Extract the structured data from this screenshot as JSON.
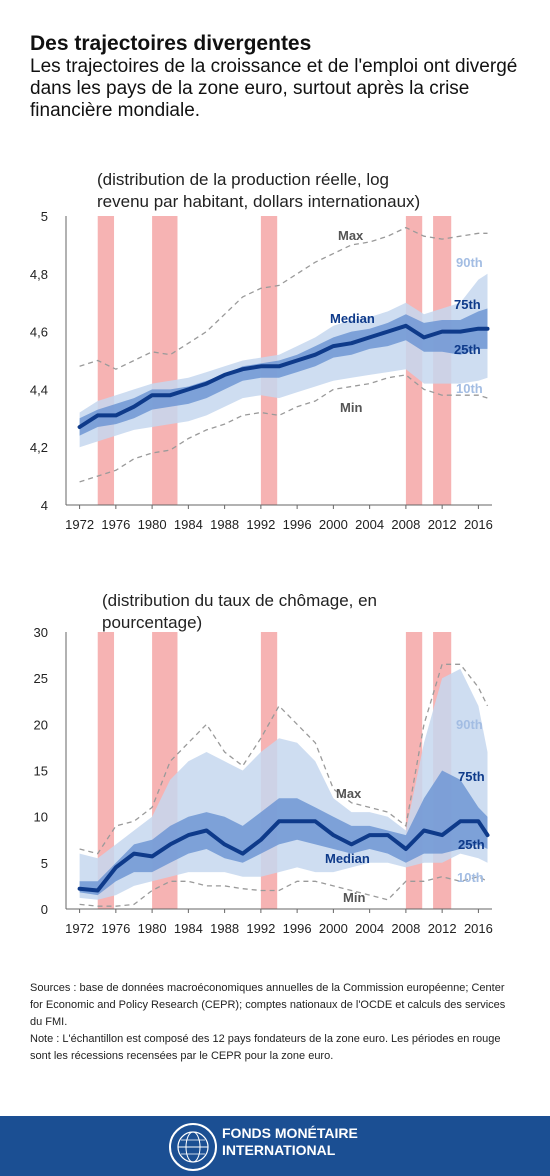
{
  "header": {
    "title": "Des trajectoires divergentes",
    "subtitle": "Les trajectoires de la croissance et de l'emploi ont divergé dans les pays de la zone euro, surtout après la crise financière mondiale."
  },
  "colors": {
    "band_outer": "#c5d7ef",
    "band_inner": "#6f97d4",
    "median": "#0e3a8a",
    "recession": "#f6b3b3",
    "minmax": "#9a9a9a",
    "footer": "#1b4f93"
  },
  "chart_data": [
    {
      "type": "area",
      "title_lines": [
        "(distribution de la production réelle, log",
        "revenu par habitant, dollars internationaux)"
      ],
      "x_ticks": [
        "1972",
        "1976",
        "1980",
        "1984",
        "1988",
        "1992",
        "1996",
        "2000",
        "2004",
        "2008",
        "2012",
        "2016"
      ],
      "y_ticks": [
        "4",
        "4,2",
        "4,4",
        "4,6",
        "4,8",
        "5"
      ],
      "xlim": [
        1970.5,
        2017.5
      ],
      "ylim": [
        4,
        5
      ],
      "recessions": [
        [
          1974,
          1975.8
        ],
        [
          1980,
          1982.8
        ],
        [
          1992,
          1993.8
        ],
        [
          2008,
          2009.8
        ],
        [
          2011,
          2013
        ]
      ],
      "labels": {
        "max": "Max",
        "p90": "90th",
        "median": "Median",
        "p75": "75th",
        "p25": "25th",
        "p10": "10th",
        "min": "Min"
      },
      "x": [
        1972,
        1974,
        1976,
        1978,
        1980,
        1982,
        1984,
        1986,
        1988,
        1990,
        1992,
        1994,
        1996,
        1998,
        2000,
        2002,
        2004,
        2006,
        2008,
        2010,
        2012,
        2014,
        2016,
        2017
      ],
      "series": [
        {
          "name": "Max",
          "values": [
            4.48,
            4.5,
            4.47,
            4.5,
            4.53,
            4.52,
            4.56,
            4.6,
            4.66,
            4.72,
            4.75,
            4.76,
            4.8,
            4.84,
            4.87,
            4.9,
            4.91,
            4.93,
            4.96,
            4.93,
            4.92,
            4.93,
            4.94,
            4.94
          ]
        },
        {
          "name": "90th",
          "values": [
            4.32,
            4.36,
            4.38,
            4.4,
            4.42,
            4.43,
            4.44,
            4.46,
            4.48,
            4.5,
            4.51,
            4.52,
            4.55,
            4.58,
            4.62,
            4.64,
            4.65,
            4.67,
            4.7,
            4.66,
            4.68,
            4.7,
            4.78,
            4.8
          ]
        },
        {
          "name": "75th",
          "values": [
            4.3,
            4.33,
            4.35,
            4.37,
            4.4,
            4.4,
            4.41,
            4.43,
            4.45,
            4.48,
            4.49,
            4.5,
            4.52,
            4.55,
            4.58,
            4.6,
            4.61,
            4.63,
            4.66,
            4.63,
            4.64,
            4.64,
            4.67,
            4.68
          ]
        },
        {
          "name": "Median",
          "values": [
            4.27,
            4.31,
            4.31,
            4.34,
            4.38,
            4.38,
            4.4,
            4.42,
            4.45,
            4.47,
            4.48,
            4.48,
            4.5,
            4.52,
            4.55,
            4.56,
            4.58,
            4.6,
            4.62,
            4.58,
            4.6,
            4.6,
            4.61,
            4.61
          ]
        },
        {
          "name": "25th",
          "values": [
            4.24,
            4.27,
            4.28,
            4.3,
            4.33,
            4.34,
            4.35,
            4.37,
            4.4,
            4.43,
            4.44,
            4.44,
            4.46,
            4.48,
            4.51,
            4.52,
            4.54,
            4.55,
            4.57,
            4.53,
            4.53,
            4.52,
            4.54,
            4.54
          ]
        },
        {
          "name": "10th",
          "values": [
            4.2,
            4.22,
            4.24,
            4.26,
            4.27,
            4.28,
            4.29,
            4.31,
            4.34,
            4.37,
            4.38,
            4.37,
            4.39,
            4.41,
            4.43,
            4.44,
            4.45,
            4.46,
            4.47,
            4.42,
            4.42,
            4.42,
            4.43,
            4.44
          ]
        },
        {
          "name": "Min",
          "values": [
            4.08,
            4.1,
            4.12,
            4.16,
            4.18,
            4.19,
            4.23,
            4.26,
            4.28,
            4.31,
            4.32,
            4.31,
            4.34,
            4.36,
            4.4,
            4.41,
            4.42,
            4.44,
            4.45,
            4.4,
            4.38,
            4.38,
            4.38,
            4.37
          ]
        }
      ]
    },
    {
      "type": "area",
      "title_lines": [
        "(distribution du taux de chômage, en",
        "pourcentage)"
      ],
      "x_ticks": [
        "1972",
        "1976",
        "1980",
        "1984",
        "1988",
        "1992",
        "1996",
        "2000",
        "2004",
        "2008",
        "2012",
        "2016"
      ],
      "y_ticks": [
        "0",
        "5",
        "10",
        "15",
        "20",
        "25",
        "30"
      ],
      "xlim": [
        1970.5,
        2017.5
      ],
      "ylim": [
        0,
        30
      ],
      "recessions": [
        [
          1974,
          1975.8
        ],
        [
          1980,
          1982.8
        ],
        [
          1992,
          1993.8
        ],
        [
          2008,
          2009.8
        ],
        [
          2011,
          2013
        ]
      ],
      "labels": {
        "max": "Max",
        "p90": "90th",
        "median": "Median",
        "p75": "75th",
        "p25": "25th",
        "p10": "10th",
        "min": "Min"
      },
      "x": [
        1972,
        1974,
        1976,
        1978,
        1980,
        1982,
        1984,
        1986,
        1988,
        1990,
        1992,
        1994,
        1996,
        1998,
        2000,
        2002,
        2004,
        2006,
        2008,
        2010,
        2012,
        2014,
        2016,
        2017
      ],
      "series": [
        {
          "name": "Max",
          "values": [
            6.5,
            6.0,
            9.0,
            9.5,
            11.0,
            16.0,
            18.0,
            20.0,
            17.0,
            15.5,
            18.5,
            22.0,
            20.0,
            18.0,
            13.0,
            11.5,
            11.0,
            10.5,
            9.0,
            20.0,
            26.5,
            26.5,
            24.0,
            22.0
          ]
        },
        {
          "name": "90th",
          "values": [
            6.0,
            5.5,
            7.0,
            8.5,
            10.0,
            14.0,
            16.0,
            17.0,
            16.0,
            15.0,
            17.0,
            18.5,
            18.0,
            16.0,
            12.0,
            10.5,
            10.5,
            10.0,
            8.5,
            18.0,
            25.0,
            26.0,
            22.0,
            17.0
          ]
        },
        {
          "name": "75th",
          "values": [
            3.0,
            3.0,
            5.0,
            7.0,
            7.5,
            9.0,
            10.0,
            10.5,
            10.0,
            9.0,
            10.5,
            12.0,
            12.0,
            11.0,
            10.0,
            9.0,
            9.0,
            8.5,
            8.0,
            12.0,
            15.0,
            14.0,
            11.0,
            10.0
          ]
        },
        {
          "name": "Median",
          "values": [
            2.2,
            2.0,
            4.5,
            6.0,
            5.7,
            7.0,
            8.0,
            8.5,
            7.0,
            6.0,
            7.5,
            9.5,
            9.5,
            9.5,
            8.0,
            7.0,
            8.0,
            8.0,
            6.5,
            8.5,
            8.0,
            9.5,
            9.5,
            8.0
          ]
        },
        {
          "name": "25th",
          "values": [
            1.8,
            1.5,
            3.0,
            4.0,
            4.0,
            5.0,
            6.0,
            6.5,
            5.5,
            5.0,
            6.0,
            7.0,
            7.5,
            7.0,
            6.5,
            6.0,
            6.5,
            6.0,
            5.0,
            6.0,
            6.0,
            6.5,
            7.0,
            6.5
          ]
        },
        {
          "name": "10th",
          "values": [
            1.2,
            1.0,
            1.5,
            2.5,
            3.0,
            3.5,
            4.0,
            4.0,
            4.0,
            3.5,
            3.5,
            4.0,
            4.5,
            4.0,
            4.0,
            4.5,
            5.0,
            5.0,
            4.5,
            5.0,
            5.0,
            6.0,
            5.5,
            5.0
          ]
        },
        {
          "name": "Min",
          "values": [
            0.5,
            0.3,
            0.3,
            0.5,
            2.0,
            3.0,
            3.0,
            2.5,
            2.5,
            2.2,
            2.0,
            2.0,
            3.0,
            3.0,
            2.5,
            2.0,
            1.5,
            1.0,
            3.0,
            3.0,
            3.5,
            3.0,
            3.5,
            3.0
          ]
        }
      ]
    }
  ],
  "sources": {
    "line1": "Sources : base de données macroéconomiques annuelles de la Commission européenne; Center for Economic and Policy Research (CEPR); comptes nationaux de l'OCDE et calculs des services du FMI.",
    "line2": "Note : L'échantillon est composé des 12 pays fondateurs de la zone euro. Les périodes en rouge sont les récessions recensées par le CEPR pour la zone euro."
  },
  "footer": {
    "org_line1": "FONDS MONÉTAIRE",
    "org_line2": "INTERNATIONAL",
    "seal_text": "FONDS MONÉTAIRE INTERNATIONAL"
  }
}
